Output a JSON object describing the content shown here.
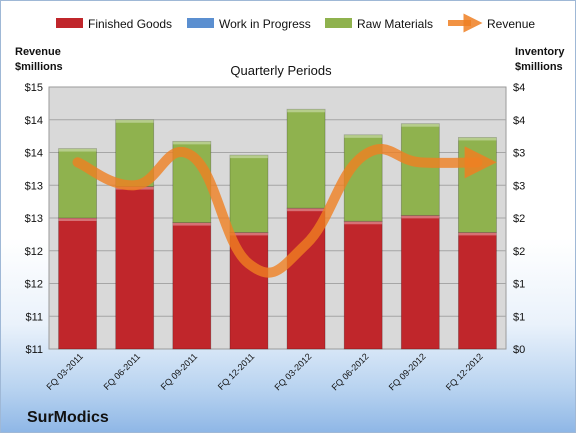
{
  "chart_data": {
    "type": "bar",
    "title": "Quarterly Periods",
    "brand": "SurModics",
    "left_axis": {
      "title_line1": "Revenue",
      "title_line2": "$millions",
      "ticks": [
        "$11",
        "$11",
        "$12",
        "$12",
        "$13",
        "$13",
        "$14",
        "$14",
        "$15"
      ],
      "range": [
        11,
        15
      ]
    },
    "right_axis": {
      "title_line1": "Inventory",
      "title_line2": "$millions",
      "ticks": [
        "$0",
        "$1",
        "$1",
        "$2",
        "$2",
        "$3",
        "$3",
        "$4",
        "$4"
      ],
      "range": [
        0,
        4
      ]
    },
    "categories": [
      "FQ 03-2011",
      "FQ 06-2011",
      "FQ 09-2011",
      "FQ 12-2011",
      "FQ 03-2012",
      "FQ 06-2012",
      "FQ 09-2012",
      "FQ 12-2012"
    ],
    "series": [
      {
        "name": "Finished Goods",
        "axis": "right",
        "color": "#c0262b",
        "values": [
          2.0,
          2.48,
          1.93,
          1.78,
          2.15,
          1.95,
          2.04,
          1.78
        ]
      },
      {
        "name": "Work in Progress",
        "axis": "right",
        "color": "#5b8fd0",
        "values": [
          0,
          0,
          0,
          0,
          0,
          0,
          0,
          0
        ]
      },
      {
        "name": "Raw Materials",
        "axis": "right",
        "color": "#8fb24e",
        "values": [
          1.06,
          1.02,
          1.24,
          1.18,
          1.51,
          1.32,
          1.4,
          1.45
        ]
      },
      {
        "name": "Revenue",
        "axis": "left",
        "type": "line",
        "color": "#ef7f22",
        "values": [
          13.85,
          13.5,
          13.95,
          12.3,
          12.6,
          13.95,
          13.85,
          13.85
        ]
      }
    ],
    "legend_position": "top",
    "grid": true
  }
}
